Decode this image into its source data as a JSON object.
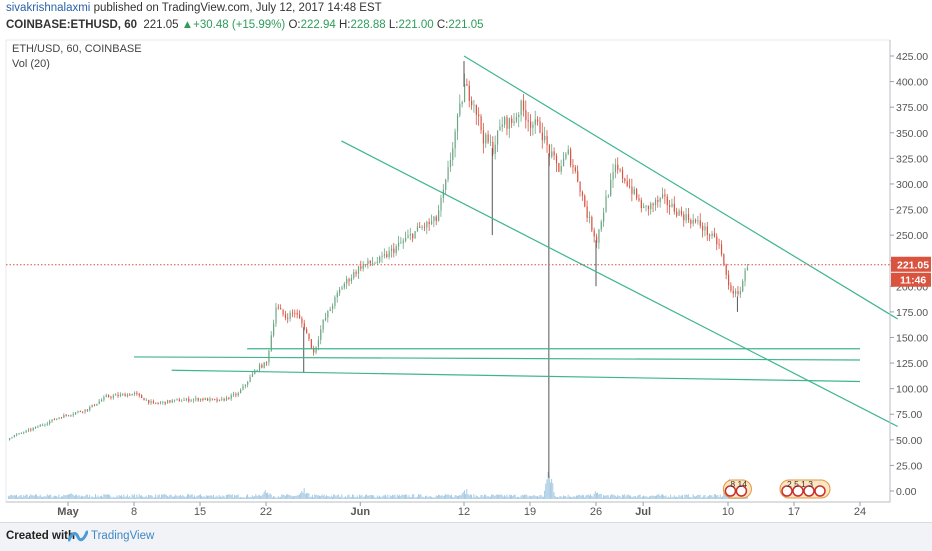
{
  "header": {
    "author": "sivakrishnalaxmi",
    "published_text": "published on TradingView.com, July 12, 2017 14:48 EST",
    "symbol": "COINBASE:ETHUSD, 60",
    "last": "221.05",
    "change": "+30.48 (+15.99%)",
    "open_label": "O:",
    "open": "222.94",
    "high_label": "H:",
    "high": "228.88",
    "low_label": "L:",
    "low": "221.00",
    "close_label": "C:",
    "close": "221.05"
  },
  "legend": {
    "series": "ETH/USD, 60, COINBASE",
    "volume": "Vol (20)"
  },
  "price_tags": {
    "last_price": "221.05",
    "countdown": "11:46"
  },
  "footer": {
    "created_with": "Created with",
    "brand": "TradingView"
  },
  "event_badges": [
    {
      "date": "2017-07-11",
      "text": "8  14"
    },
    {
      "date": "2017-07-17",
      "text": "2  5  1  3"
    }
  ],
  "colors": {
    "trendline": "#3db58f",
    "candle_up": "#6ba583",
    "candle_down": "#d75442",
    "volume": "#7fb3d5",
    "last_price": "#d9533f"
  },
  "chart_data": {
    "type": "candlestick",
    "title": "ETH/USD, 60, COINBASE",
    "x_ticks": [
      {
        "label": "May",
        "date": "2017-05-01"
      },
      {
        "label": "8",
        "date": "2017-05-08"
      },
      {
        "label": "15",
        "date": "2017-05-15"
      },
      {
        "label": "22",
        "date": "2017-05-22"
      },
      {
        "label": "Jun",
        "date": "2017-06-01"
      },
      {
        "label": "12",
        "date": "2017-06-12"
      },
      {
        "label": "19",
        "date": "2017-06-19"
      },
      {
        "label": "26",
        "date": "2017-06-26"
      },
      {
        "label": "Jul",
        "date": "2017-07-01"
      },
      {
        "label": "10",
        "date": "2017-07-10"
      },
      {
        "label": "17",
        "date": "2017-07-17"
      },
      {
        "label": "24",
        "date": "2017-07-24"
      }
    ],
    "y_ticks": [
      425,
      400,
      375,
      350,
      325,
      300,
      275,
      250,
      225,
      200,
      175,
      150,
      125,
      100,
      75,
      50,
      25,
      0
    ],
    "y_tick_labels": [
      "425.00",
      "400.00",
      "375.00",
      "350.00",
      "325.00",
      "300.00",
      "275.00",
      "250.00",
      "225.00",
      "200.00",
      "175.00",
      "150.00",
      "125.00",
      "100.00",
      "75.00",
      "50.00",
      "25.00",
      "0.00"
    ],
    "ylim": [
      -10,
      440
    ],
    "last_price": 221.05,
    "price_path": [
      [
        "2017-04-24",
        50
      ],
      [
        "2017-04-27",
        60
      ],
      [
        "2017-04-30",
        72
      ],
      [
        "2017-05-03",
        80
      ],
      [
        "2017-05-05",
        92
      ],
      [
        "2017-05-08",
        95
      ],
      [
        "2017-05-10",
        85
      ],
      [
        "2017-05-12",
        88
      ],
      [
        "2017-05-15",
        90
      ],
      [
        "2017-05-17",
        88
      ],
      [
        "2017-05-19",
        95
      ],
      [
        "2017-05-21",
        120
      ],
      [
        "2017-05-22",
        125
      ],
      [
        "2017-05-23",
        180
      ],
      [
        "2017-05-24",
        170
      ],
      [
        "2017-05-25",
        175
      ],
      [
        "2017-05-26",
        160
      ],
      [
        "2017-05-27",
        135
      ],
      [
        "2017-05-28",
        165
      ],
      [
        "2017-05-30",
        200
      ],
      [
        "2017-06-01",
        220
      ],
      [
        "2017-06-03",
        225
      ],
      [
        "2017-06-05",
        240
      ],
      [
        "2017-06-07",
        255
      ],
      [
        "2017-06-09",
        265
      ],
      [
        "2017-06-10",
        300
      ],
      [
        "2017-06-11",
        350
      ],
      [
        "2017-06-12",
        395
      ],
      [
        "2017-06-13",
        380
      ],
      [
        "2017-06-14",
        345
      ],
      [
        "2017-06-15",
        335
      ],
      [
        "2017-06-16",
        360
      ],
      [
        "2017-06-17",
        360
      ],
      [
        "2017-06-18",
        375
      ],
      [
        "2017-06-19",
        360
      ],
      [
        "2017-06-20",
        355
      ],
      [
        "2017-06-21",
        330
      ],
      [
        "2017-06-22",
        315
      ],
      [
        "2017-06-23",
        330
      ],
      [
        "2017-06-24",
        305
      ],
      [
        "2017-06-25",
        270
      ],
      [
        "2017-06-26",
        245
      ],
      [
        "2017-06-27",
        285
      ],
      [
        "2017-06-28",
        315
      ],
      [
        "2017-06-29",
        305
      ],
      [
        "2017-06-30",
        290
      ],
      [
        "2017-07-01",
        275
      ],
      [
        "2017-07-03",
        285
      ],
      [
        "2017-07-05",
        270
      ],
      [
        "2017-07-07",
        260
      ],
      [
        "2017-07-09",
        240
      ],
      [
        "2017-07-10",
        200
      ],
      [
        "2017-07-11",
        190
      ],
      [
        "2017-07-12",
        221
      ]
    ],
    "spikes_low": [
      [
        "2017-05-26",
        116
      ],
      [
        "2017-06-15",
        250
      ],
      [
        "2017-06-21",
        13
      ],
      [
        "2017-06-26",
        200
      ],
      [
        "2017-07-11",
        175
      ]
    ],
    "spike_high": [
      "2017-06-12",
      420
    ],
    "trendlines": [
      {
        "name": "upper-channel",
        "from": [
          "2017-06-12",
          425
        ],
        "to": [
          "2017-07-28",
          168
        ]
      },
      {
        "name": "lower-channel",
        "from": [
          "2017-05-30",
          342
        ],
        "to": [
          "2017-07-28",
          63
        ]
      },
      {
        "name": "support-1",
        "from": [
          "2017-05-20",
          139
        ],
        "to": [
          "2017-07-24",
          139
        ]
      },
      {
        "name": "support-2",
        "from": [
          "2017-05-08",
          131
        ],
        "to": [
          "2017-07-24",
          128
        ]
      },
      {
        "name": "support-3",
        "from": [
          "2017-05-12",
          118
        ],
        "to": [
          "2017-07-24",
          107
        ]
      }
    ],
    "volume_peaks": [
      [
        "2017-05-01",
        8
      ],
      [
        "2017-05-22",
        22
      ],
      [
        "2017-05-26",
        18
      ],
      [
        "2017-06-12",
        30
      ],
      [
        "2017-06-21",
        110
      ],
      [
        "2017-06-26",
        14
      ],
      [
        "2017-07-10",
        95
      ],
      [
        "2017-07-11",
        30
      ]
    ]
  }
}
